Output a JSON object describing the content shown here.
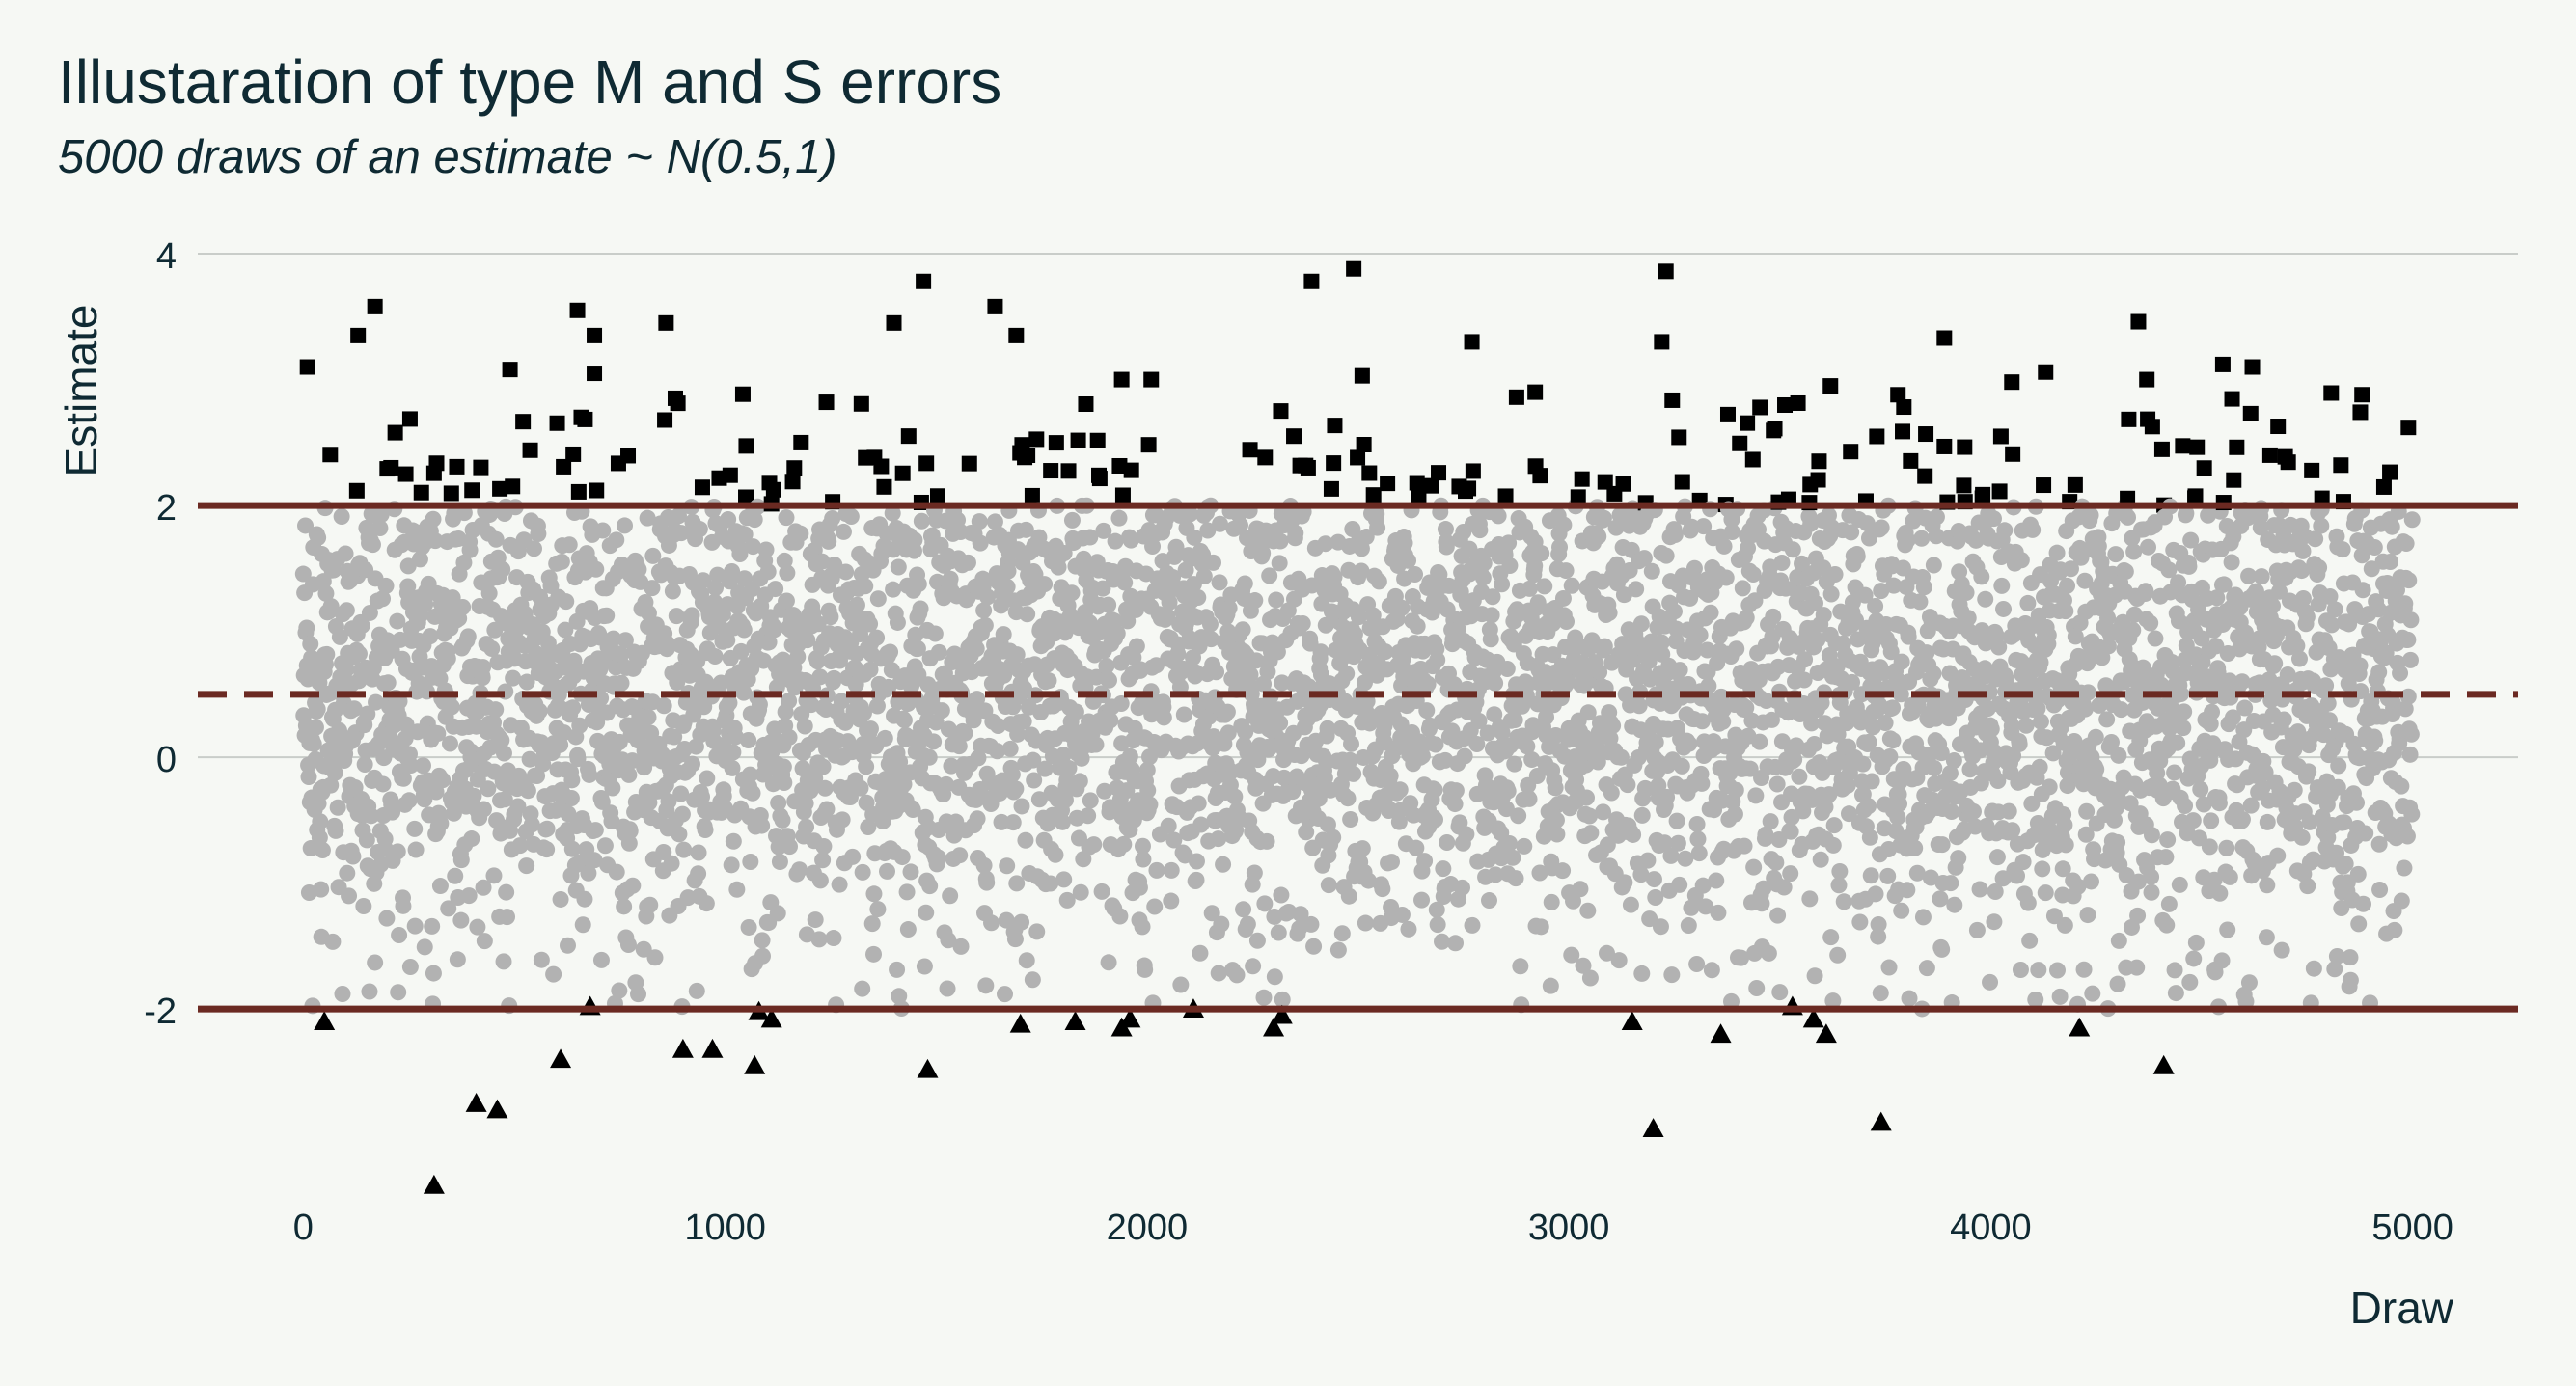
{
  "chart_data": {
    "type": "scatter",
    "title": "Illustaration of type M and S errors",
    "subtitle": "5000 draws of an estimate ~ N(0.5,1)",
    "xlabel": "Draw",
    "ylabel": "Estimate",
    "xlim": [
      -250,
      5250
    ],
    "ylim": [
      -3.6,
      4.1
    ],
    "x_ticks": [
      0,
      1000,
      2000,
      3000,
      4000,
      5000
    ],
    "y_ticks": [
      -2,
      0,
      2,
      4
    ],
    "x_tick_labels": [
      "0",
      "1000",
      "2000",
      "3000",
      "4000",
      "5000"
    ],
    "y_tick_labels": [
      "-2",
      "0",
      "2",
      "4"
    ],
    "grid": "horizontal",
    "reference_lines": [
      {
        "y": 2,
        "style": "solid"
      },
      {
        "y": -2,
        "style": "solid"
      },
      {
        "y": 0.5,
        "style": "dashed"
      }
    ],
    "distribution": {
      "n": 5000,
      "mean": 0.5,
      "sd": 1
    },
    "groups": [
      {
        "group": "above 2",
        "marker": "square",
        "color": "#000000"
      },
      {
        "group": "between -2 and 2",
        "marker": "circle",
        "color": "#b2b2b2"
      },
      {
        "group": "below -2",
        "marker": "triangle",
        "color": "#000000"
      }
    ],
    "below_minus_two_points": [
      {
        "x": 50,
        "y": -2.1
      },
      {
        "x": 310,
        "y": -3.4
      },
      {
        "x": 410,
        "y": -2.75
      },
      {
        "x": 460,
        "y": -2.8
      },
      {
        "x": 610,
        "y": -2.4
      },
      {
        "x": 680,
        "y": -1.98
      },
      {
        "x": 900,
        "y": -2.32
      },
      {
        "x": 970,
        "y": -2.32
      },
      {
        "x": 1070,
        "y": -2.45
      },
      {
        "x": 1080,
        "y": -2.02
      },
      {
        "x": 1110,
        "y": -2.08
      },
      {
        "x": 1480,
        "y": -2.48
      },
      {
        "x": 1700,
        "y": -2.12
      },
      {
        "x": 1830,
        "y": -2.1
      },
      {
        "x": 1940,
        "y": -2.15
      },
      {
        "x": 1960,
        "y": -2.08
      },
      {
        "x": 2110,
        "y": -2.0
      },
      {
        "x": 2300,
        "y": -2.15
      },
      {
        "x": 2320,
        "y": -2.05
      },
      {
        "x": 3150,
        "y": -2.1
      },
      {
        "x": 3200,
        "y": -2.95
      },
      {
        "x": 3360,
        "y": -2.2
      },
      {
        "x": 3530,
        "y": -1.98
      },
      {
        "x": 3580,
        "y": -2.08
      },
      {
        "x": 3610,
        "y": -2.2
      },
      {
        "x": 3740,
        "y": -2.9
      },
      {
        "x": 4210,
        "y": -2.15
      },
      {
        "x": 4410,
        "y": -2.45
      }
    ],
    "above_two_points": [
      {
        "x": 10,
        "y": 3.1
      },
      {
        "x": 170,
        "y": 3.58
      },
      {
        "x": 130,
        "y": 3.35
      },
      {
        "x": 650,
        "y": 3.55
      },
      {
        "x": 690,
        "y": 3.35
      },
      {
        "x": 690,
        "y": 3.05
      },
      {
        "x": 860,
        "y": 3.45
      },
      {
        "x": 1400,
        "y": 3.45
      },
      {
        "x": 1470,
        "y": 3.78
      },
      {
        "x": 1640,
        "y": 3.58
      },
      {
        "x": 1690,
        "y": 3.35
      },
      {
        "x": 2390,
        "y": 3.78
      },
      {
        "x": 2490,
        "y": 3.88
      },
      {
        "x": 2770,
        "y": 3.3
      },
      {
        "x": 3220,
        "y": 3.3
      },
      {
        "x": 3230,
        "y": 3.86
      },
      {
        "x": 3890,
        "y": 3.33
      },
      {
        "x": 4350,
        "y": 3.46
      },
      {
        "x": 4370,
        "y": 3.0
      },
      {
        "x": 490,
        "y": 3.08
      },
      {
        "x": 1240,
        "y": 2.82
      },
      {
        "x": 1940,
        "y": 3.0
      },
      {
        "x": 2010,
        "y": 3.0
      },
      {
        "x": 2510,
        "y": 3.03
      },
      {
        "x": 2920,
        "y": 2.9
      },
      {
        "x": 3620,
        "y": 2.95
      },
      {
        "x": 4050,
        "y": 2.98
      },
      {
        "x": 4130,
        "y": 3.06
      },
      {
        "x": 4550,
        "y": 3.12
      },
      {
        "x": 4620,
        "y": 3.1
      },
      {
        "x": 4880,
        "y": 2.88
      },
      {
        "x": 4990,
        "y": 2.62
      }
    ]
  }
}
